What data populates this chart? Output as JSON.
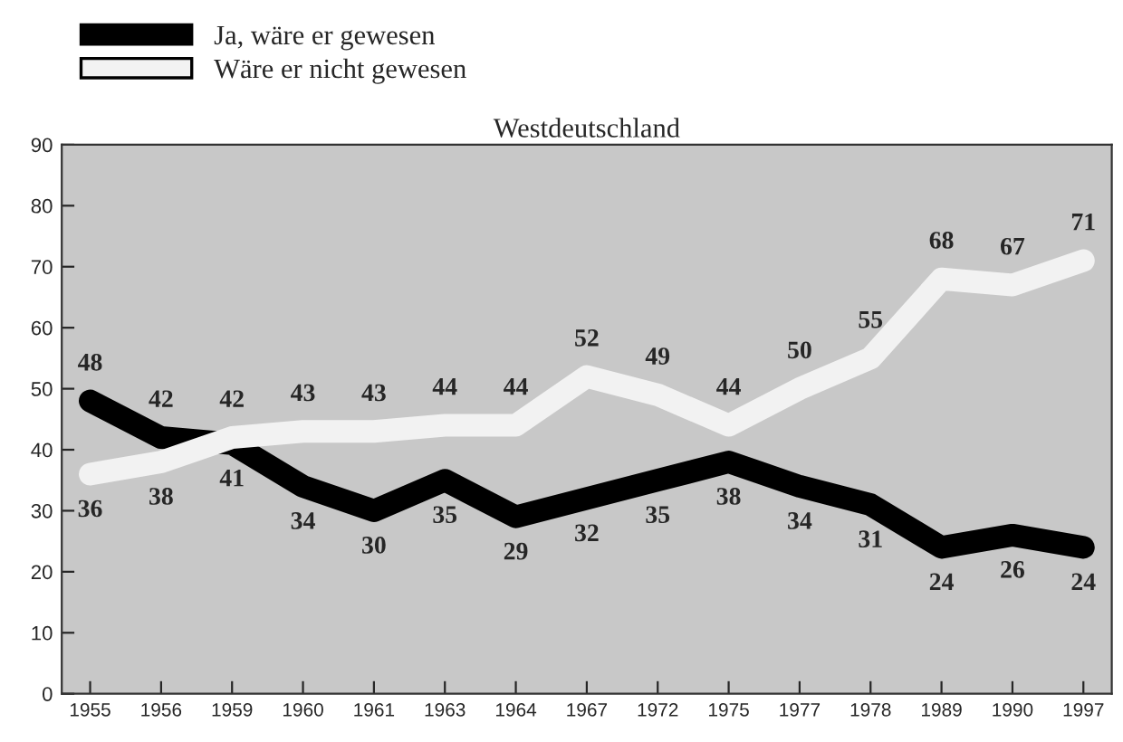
{
  "chart_data": {
    "type": "line",
    "title": "Westdeutschland",
    "categories": [
      "1955",
      "1956",
      "1959",
      "1960",
      "1961",
      "1963",
      "1964",
      "1967",
      "1972",
      "1975",
      "1977",
      "1978",
      "1989",
      "1990",
      "1997"
    ],
    "series": [
      {
        "name": "Ja, wäre er gewesen",
        "color": "#000000",
        "values": [
          48,
          42,
          41,
          34,
          30,
          35,
          29,
          32,
          35,
          38,
          34,
          31,
          24,
          26,
          24
        ]
      },
      {
        "name": "Wäre er nicht gewesen",
        "color": "#f2f2f2",
        "values": [
          36,
          38,
          42,
          43,
          43,
          44,
          44,
          52,
          49,
          44,
          50,
          55,
          68,
          67,
          71
        ]
      }
    ],
    "ylim": [
      0,
      90
    ],
    "yticks": [
      0,
      10,
      20,
      30,
      40,
      50,
      60,
      70,
      80,
      90
    ],
    "grid": false,
    "legend": "top left",
    "data_labels": true,
    "marker": "none",
    "line_style": "solid"
  }
}
